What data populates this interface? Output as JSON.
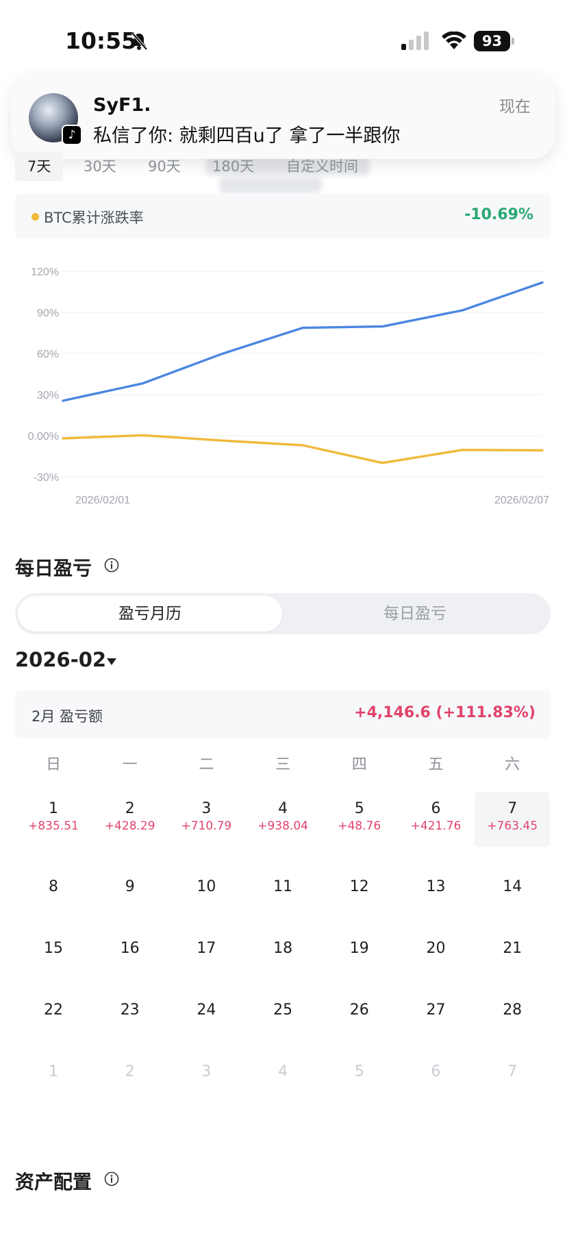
{
  "status_bar": {
    "time": "10:55",
    "battery": "93"
  },
  "notification": {
    "sender": "SyF1.",
    "message": "私信了你: 就剩四百u了 拿了一半跟你",
    "time": "现在",
    "app_icon": "tiktok-icon"
  },
  "period_tabs": [
    "7天",
    "30天",
    "90天",
    "180天",
    "自定义时间"
  ],
  "btc": {
    "label": "BTC累计涨跌率",
    "value": "-10.69%"
  },
  "chart_data": {
    "type": "line",
    "x": [
      "2026/02/01",
      "2026/02/02",
      "2026/02/03",
      "2026/02/04",
      "2026/02/05",
      "2026/02/06",
      "2026/02/07"
    ],
    "x_tick_labels": [
      "2026/02/01",
      "2026/02/07"
    ],
    "y_tick_labels": [
      "120%",
      "90%",
      "60%",
      "30%",
      "0.00%",
      "-30%"
    ],
    "ylim": [
      -30,
      120
    ],
    "series": [
      {
        "color": "#4a86e0",
        "values": [
          25.5,
          38.2,
          59.9,
          78.7,
          79.7,
          91.5,
          111.8
        ]
      },
      {
        "name": "BTC累计涨跌率",
        "color": "#f0b93a",
        "values": [
          -2.0,
          0.3,
          -3.6,
          -7.0,
          -19.9,
          -10.4,
          -10.7
        ]
      }
    ],
    "grid": true,
    "legend": "none"
  },
  "daily_pnl": {
    "title": "每日盈亏",
    "segments": [
      "盈亏月历",
      "每日盈亏"
    ],
    "month": "2026-02",
    "summary_label": "2月 盈亏额",
    "summary_value": "+4,146.6 (+111.83%)",
    "weekdays": [
      "日",
      "一",
      "二",
      "三",
      "四",
      "五",
      "六"
    ],
    "days": [
      {
        "day": "1",
        "pnl": "+835.51"
      },
      {
        "day": "2",
        "pnl": "+428.29"
      },
      {
        "day": "3",
        "pnl": "+710.79"
      },
      {
        "day": "4",
        "pnl": "+938.04"
      },
      {
        "day": "5",
        "pnl": "+48.76"
      },
      {
        "day": "6",
        "pnl": "+421.76"
      },
      {
        "day": "7",
        "pnl": "+763.45"
      },
      {
        "day": "8",
        "pnl": ""
      },
      {
        "day": "9",
        "pnl": ""
      },
      {
        "day": "10",
        "pnl": ""
      },
      {
        "day": "11",
        "pnl": ""
      },
      {
        "day": "12",
        "pnl": ""
      },
      {
        "day": "13",
        "pnl": ""
      },
      {
        "day": "14",
        "pnl": ""
      },
      {
        "day": "15",
        "pnl": ""
      },
      {
        "day": "16",
        "pnl": ""
      },
      {
        "day": "17",
        "pnl": ""
      },
      {
        "day": "18",
        "pnl": ""
      },
      {
        "day": "19",
        "pnl": ""
      },
      {
        "day": "20",
        "pnl": ""
      },
      {
        "day": "21",
        "pnl": ""
      },
      {
        "day": "22",
        "pnl": ""
      },
      {
        "day": "23",
        "pnl": ""
      },
      {
        "day": "24",
        "pnl": ""
      },
      {
        "day": "25",
        "pnl": ""
      },
      {
        "day": "26",
        "pnl": ""
      },
      {
        "day": "27",
        "pnl": ""
      },
      {
        "day": "28",
        "pnl": ""
      }
    ],
    "next_month_days": [
      "1",
      "2",
      "3",
      "4",
      "5",
      "6",
      "7"
    ]
  },
  "asset_allocation": {
    "title": "资产配置"
  },
  "colors": {
    "profit": "#e0436a",
    "btc_negative": "#27a873",
    "portfolio_line": "#4a86e0",
    "btc_line": "#f0b93a"
  }
}
